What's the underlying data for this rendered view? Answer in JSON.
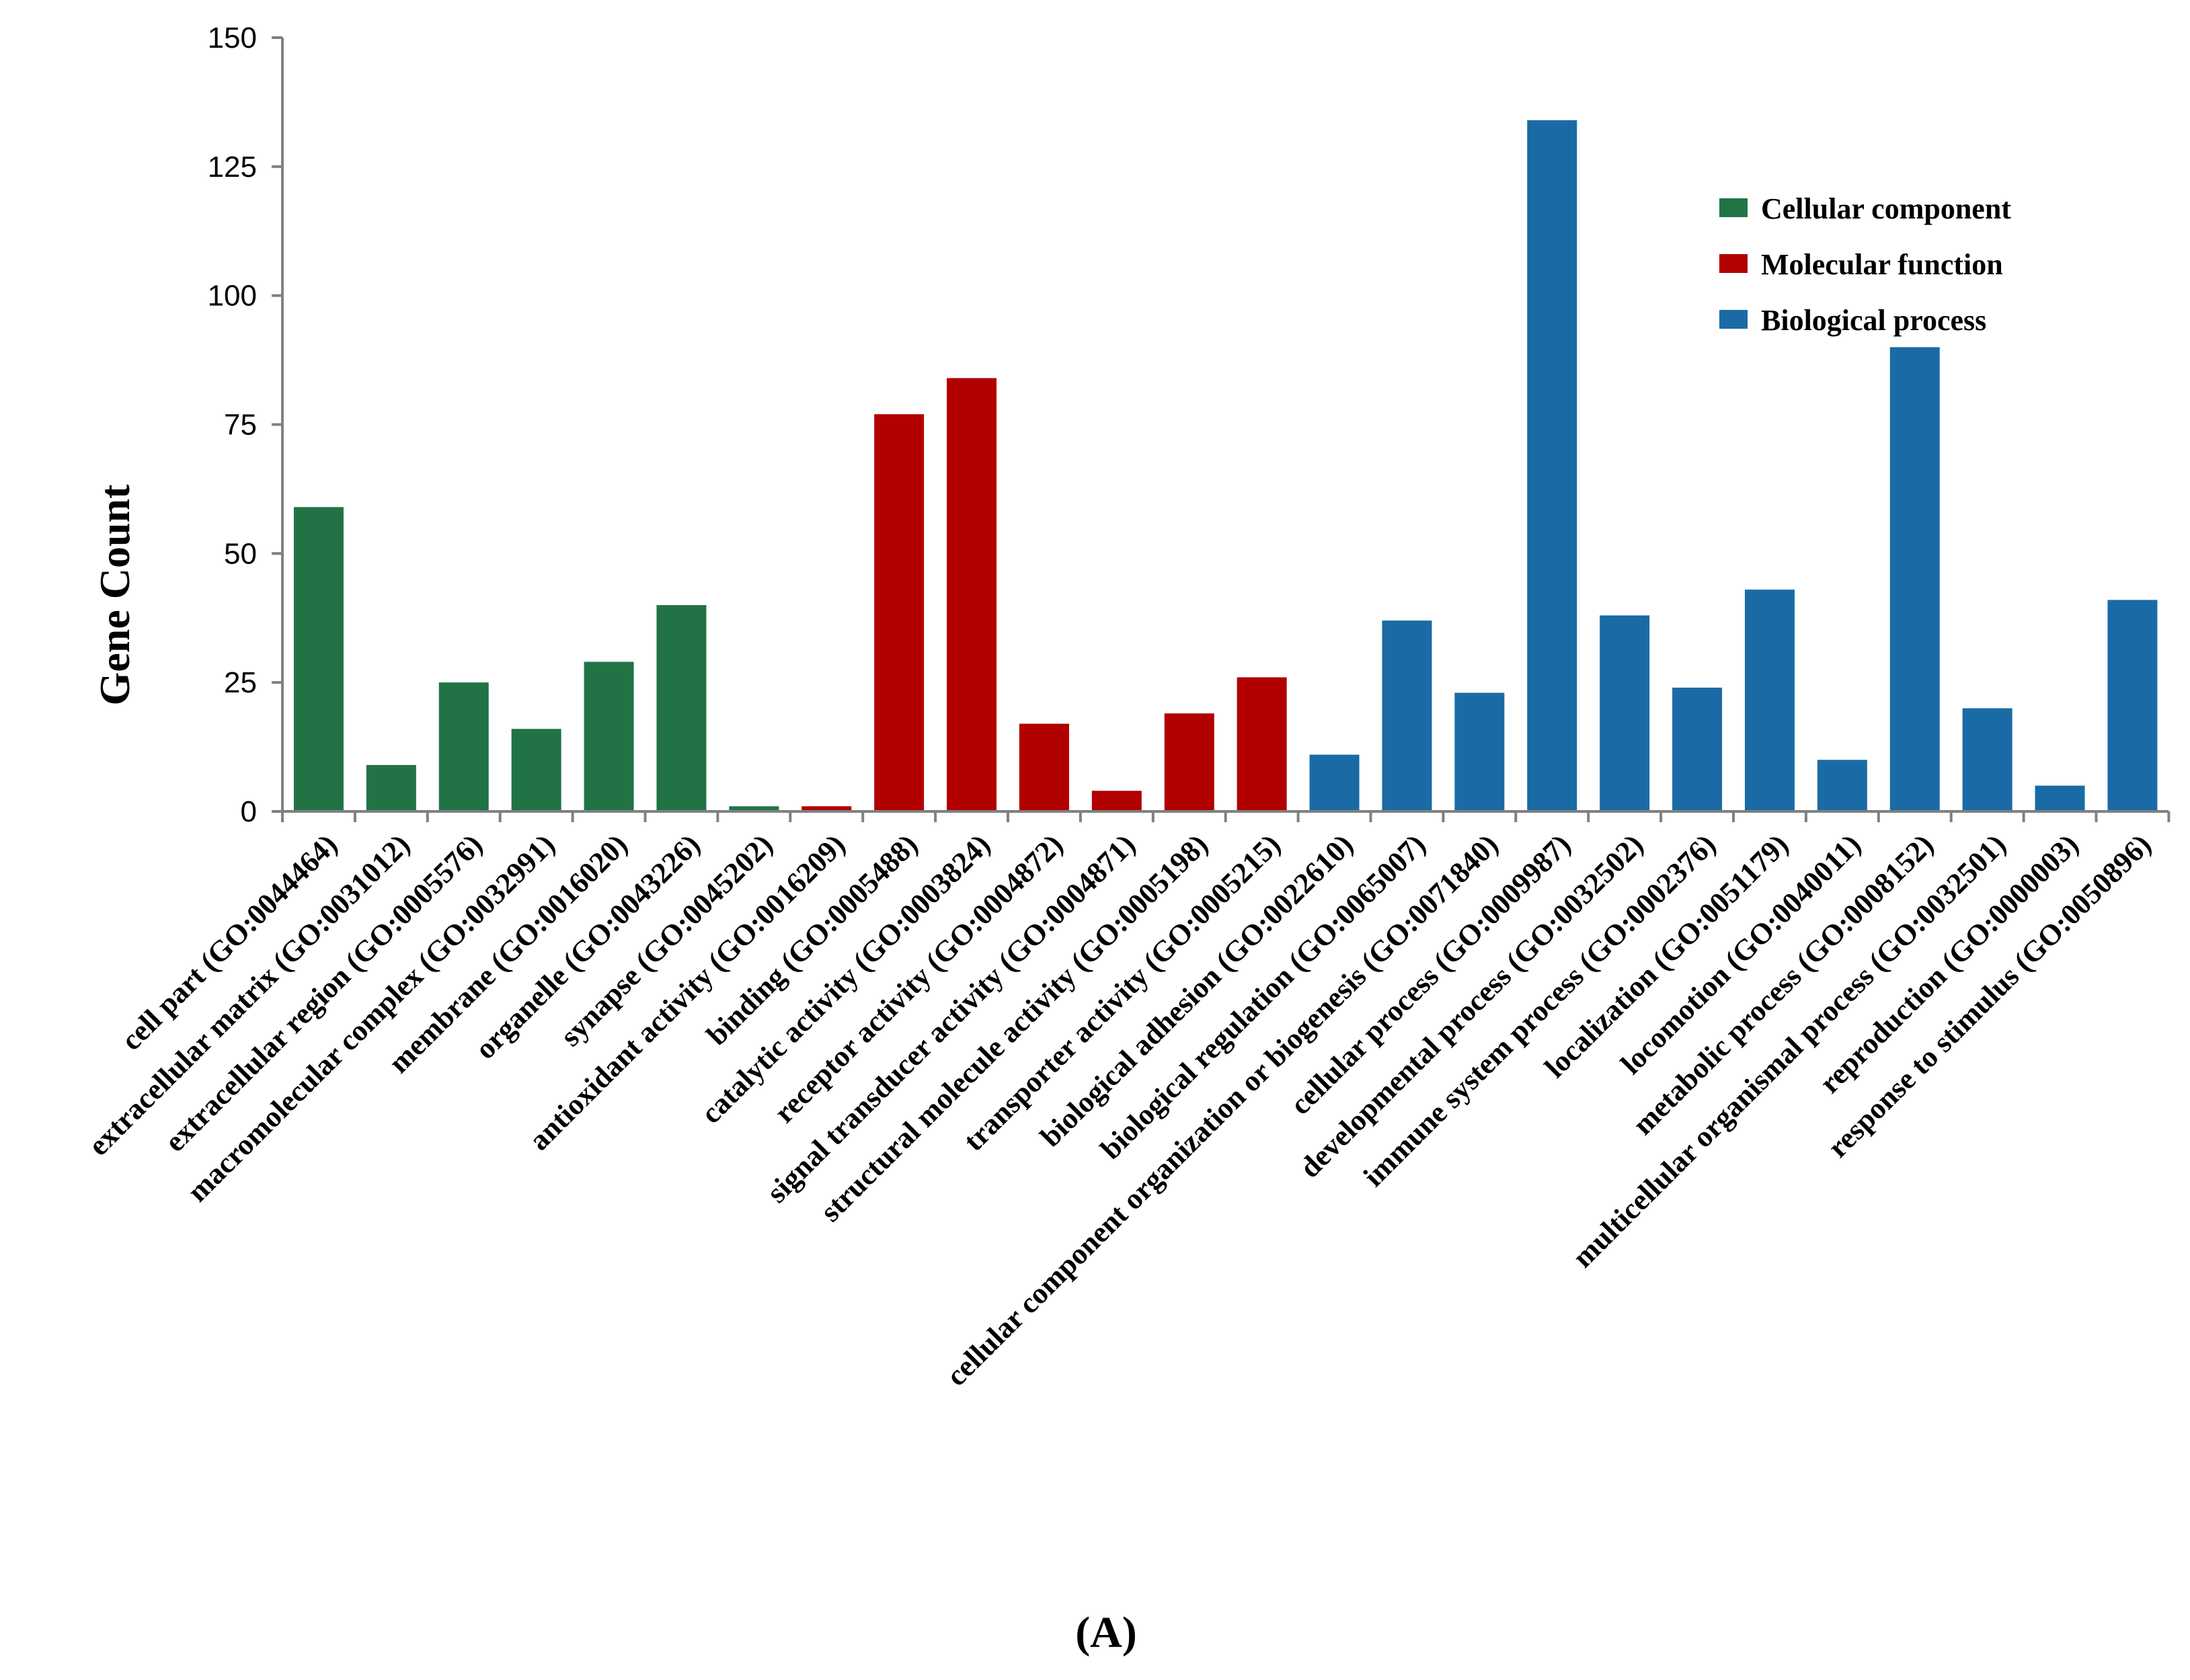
{
  "chart_data": {
    "type": "bar",
    "title": "",
    "xlabel": "",
    "ylabel": "Gene Count",
    "ylim": [
      0,
      150
    ],
    "yticks": [
      0,
      25,
      50,
      75,
      100,
      125,
      150
    ],
    "grid": false,
    "legend_position": "top-right",
    "panel_label": "(A)",
    "groups": [
      {
        "name": "Cellular component",
        "color": "#217346"
      },
      {
        "name": "Molecular function",
        "color": "#b20000"
      },
      {
        "name": "Biological process",
        "color": "#1a6ba5"
      }
    ],
    "categories": [
      "cell part (GO:0044464)",
      "extracellular matrix (GO:0031012)",
      "extracellular region (GO:0005576)",
      "macromolecular complex (GO:0032991)",
      "membrane (GO:0016020)",
      "organelle (GO:0043226)",
      "synapse (GO:0045202)",
      "antioxidant activity (GO:0016209)",
      "binding (GO:0005488)",
      "catalytic activity (GO:0003824)",
      "receptor activity (GO:0004872)",
      "signal transducer activity (GO:0004871)",
      "structural molecule activity (GO:0005198)",
      "transporter activity (GO:0005215)",
      "biological adhesion (GO:0022610)",
      "biological regulation (GO:0065007)",
      "cellular component organization or biogenesis (GO:0071840)",
      "cellular process (GO:0009987)",
      "developmental process (GO:0032502)",
      "immune system process (GO:0002376)",
      "localization (GO:0051179)",
      "locomotion (GO:0040011)",
      "metabolic process (GO:0008152)",
      "multicellular organismal process (GO:0032501)",
      "reproduction (GO:0000003)",
      "response to stimulus (GO:0050896)"
    ],
    "values": [
      59,
      9,
      25,
      16,
      29,
      40,
      1,
      1,
      77,
      84,
      17,
      4,
      19,
      26,
      11,
      37,
      23,
      134,
      38,
      24,
      43,
      10,
      90,
      20,
      5,
      41
    ],
    "group_index": [
      0,
      0,
      0,
      0,
      0,
      0,
      0,
      1,
      1,
      1,
      1,
      1,
      1,
      1,
      2,
      2,
      2,
      2,
      2,
      2,
      2,
      2,
      2,
      2,
      2,
      2
    ]
  }
}
